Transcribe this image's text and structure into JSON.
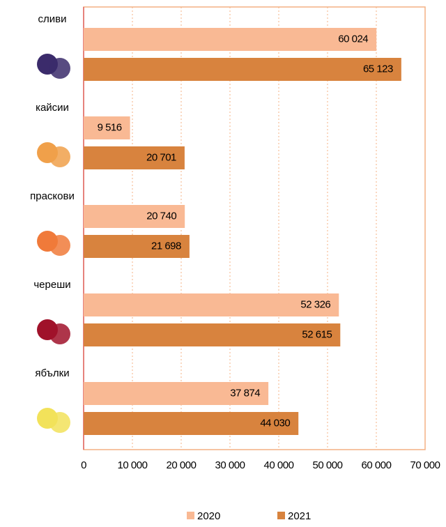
{
  "chart_data": {
    "type": "bar",
    "orientation": "horizontal",
    "categories": [
      "сливи",
      "кайсии",
      "праскови",
      "череши",
      "ябълки"
    ],
    "series": [
      {
        "name": "2020",
        "color": "#f9b994",
        "values": [
          60024,
          9516,
          20740,
          52326,
          37874
        ],
        "value_labels": [
          "60 024",
          "9 516",
          "20 740",
          "52 326",
          "37 874"
        ]
      },
      {
        "name": "2021",
        "color": "#d8833e",
        "values": [
          65123,
          20701,
          21698,
          52615,
          44030
        ],
        "value_labels": [
          "65 123",
          "20 701",
          "21 698",
          "52 615",
          "44 030"
        ]
      }
    ],
    "xlim": [
      0,
      70000
    ],
    "xticks": [
      0,
      {
        "value": 10000,
        "label": "10 000"
      },
      {
        "value": 20000,
        "label": "20 000"
      },
      {
        "value": 30000,
        "label": "30 000"
      },
      {
        "value": 40000,
        "label": "40 000"
      },
      {
        "value": 50000,
        "label": "50 000"
      },
      {
        "value": 60000,
        "label": "60 000"
      },
      {
        "value": 70000,
        "label": "70 000"
      }
    ],
    "grid": true,
    "legend": "bottom"
  }
}
